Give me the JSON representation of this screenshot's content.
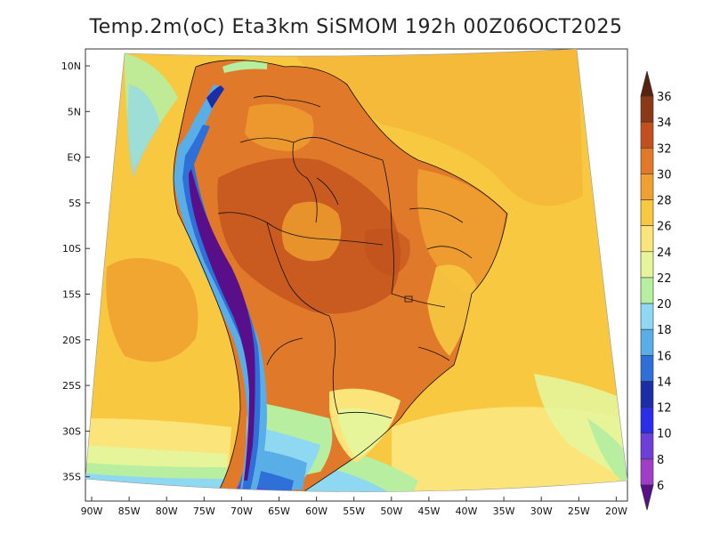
{
  "title": "Temp.2m(oC) Eta3km SiSMOM 192h 00Z06OCT2025",
  "lat_labels": [
    "10N",
    "5N",
    "EQ",
    "5S",
    "10S",
    "15S",
    "20S",
    "25S",
    "30S",
    "35S"
  ],
  "lon_labels": [
    "90W",
    "85W",
    "80W",
    "75W",
    "70W",
    "65W",
    "60W",
    "55W",
    "50W",
    "45W",
    "40W",
    "35W",
    "30W",
    "25W",
    "20W"
  ],
  "colorbar": {
    "labels": [
      "36",
      "34",
      "32",
      "30",
      "28",
      "26",
      "24",
      "22",
      "20",
      "18",
      "16",
      "14",
      "12",
      "10",
      "8",
      "6"
    ],
    "colors": [
      "#5a2010",
      "#8a3818",
      "#c2501e",
      "#e07a2a",
      "#f0a030",
      "#f7c840",
      "#fbe47a",
      "#e6f59a",
      "#b8eea0",
      "#8ed8f2",
      "#5aaee8",
      "#2e6fd8",
      "#1a2ea8",
      "#2a2ee8",
      "#6e3ed8",
      "#a03ec8",
      "#5a0f8a"
    ]
  }
}
